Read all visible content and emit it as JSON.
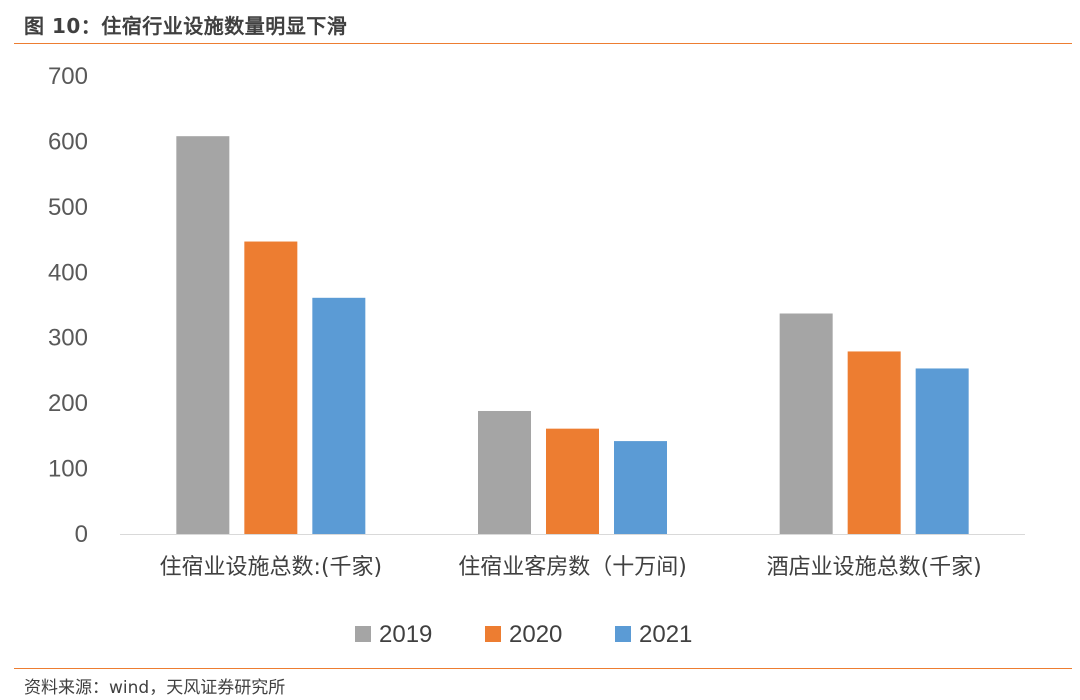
{
  "figure": {
    "title": "图 10：住宿行业设施数量明显下滑",
    "source": "资料来源：wind，天风证券研究所"
  },
  "chart_data": {
    "type": "bar",
    "categories": [
      "住宿业设施总数:(千家)",
      "住宿业客房数（十万间)",
      "酒店业设施总数(千家)"
    ],
    "series": [
      {
        "name": "2019",
        "color": "#A5A5A5",
        "values": [
          608,
          188,
          337
        ]
      },
      {
        "name": "2020",
        "color": "#ED7D31",
        "values": [
          447,
          161,
          279
        ]
      },
      {
        "name": "2021",
        "color": "#5B9BD5",
        "values": [
          361,
          142,
          253
        ]
      }
    ],
    "yticks": [
      "0",
      "100",
      "200",
      "300",
      "400",
      "500",
      "600",
      "700"
    ],
    "ylim": [
      0,
      700
    ],
    "grid": false,
    "legend": "bottom"
  }
}
